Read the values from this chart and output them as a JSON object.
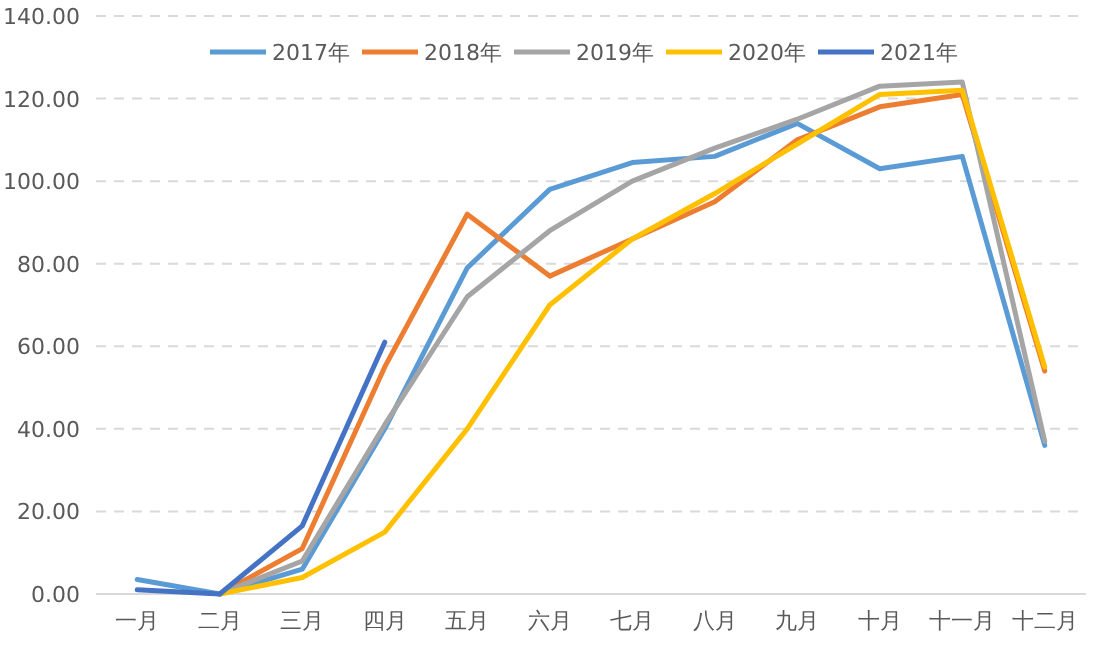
{
  "chart_data": {
    "type": "line",
    "categories": [
      "一月",
      "二月",
      "三月",
      "四月",
      "五月",
      "六月",
      "七月",
      "八月",
      "九月",
      "十月",
      "十一月",
      "十二月"
    ],
    "series": [
      {
        "name": "2017年",
        "color": "#5b9bd5",
        "values": [
          3.5,
          0,
          6,
          40,
          79,
          98,
          104.5,
          106,
          114,
          103,
          106,
          36
        ]
      },
      {
        "name": "2018年",
        "color": "#ed7d31",
        "values": [
          null,
          0,
          11,
          55,
          92,
          77,
          86,
          95,
          110,
          118,
          121,
          54
        ]
      },
      {
        "name": "2019年",
        "color": "#a5a5a5",
        "values": [
          null,
          0,
          8,
          41,
          72,
          88,
          100,
          108,
          115,
          123,
          124,
          37
        ]
      },
      {
        "name": "2020年",
        "color": "#ffc000",
        "values": [
          null,
          0,
          4,
          15,
          40,
          70,
          86,
          97,
          109,
          121,
          122,
          55
        ]
      },
      {
        "name": "2021年",
        "color": "#4472c4",
        "values": [
          1,
          0,
          16.5,
          61,
          null,
          null,
          null,
          null,
          null,
          null,
          null,
          null
        ]
      }
    ],
    "ylim": [
      0,
      140
    ],
    "yticks": [
      {
        "value": 0,
        "label": "0.00"
      },
      {
        "value": 20,
        "label": "20.00"
      },
      {
        "value": 40,
        "label": "40.00"
      },
      {
        "value": 60,
        "label": "60.00"
      },
      {
        "value": 80,
        "label": "80.00"
      },
      {
        "value": 100,
        "label": "100.00"
      },
      {
        "value": 120,
        "label": "120.00"
      },
      {
        "value": 140,
        "label": "140.00"
      }
    ],
    "grid": "y",
    "legend": "top",
    "marker": "none",
    "line_style": "solid"
  }
}
